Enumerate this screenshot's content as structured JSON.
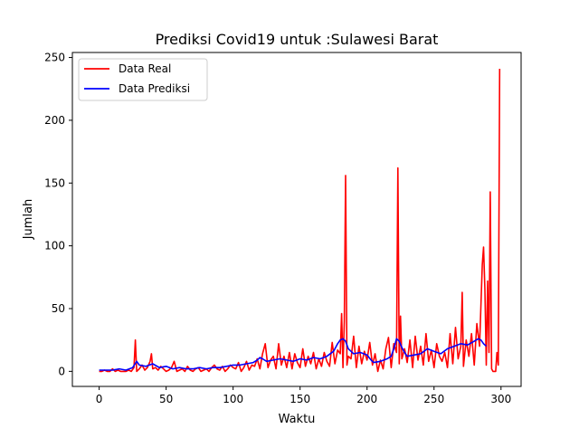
{
  "chart_data": {
    "type": "line",
    "title": "Prediksi Covid19 untuk :Sulawesi Barat",
    "xlabel": "Waktu",
    "ylabel": "Jumlah",
    "xlim": [
      -20,
      315
    ],
    "ylim": [
      -12,
      254
    ],
    "xticks": [
      0,
      50,
      100,
      150,
      200,
      250,
      300
    ],
    "yticks": [
      0,
      50,
      100,
      150,
      200,
      250
    ],
    "grid": false,
    "legend_position": "top-left",
    "series": [
      {
        "name": "Data Real",
        "color": "#ff0000",
        "x": [
          0,
          2,
          4,
          6,
          8,
          10,
          12,
          14,
          16,
          18,
          20,
          22,
          24,
          26,
          27,
          28,
          30,
          32,
          34,
          36,
          38,
          39,
          40,
          42,
          44,
          46,
          48,
          50,
          52,
          54,
          56,
          58,
          60,
          62,
          64,
          66,
          68,
          70,
          72,
          74,
          76,
          78,
          80,
          82,
          84,
          86,
          88,
          90,
          92,
          94,
          96,
          98,
          100,
          102,
          104,
          106,
          108,
          110,
          112,
          114,
          116,
          118,
          120,
          122,
          124,
          126,
          128,
          130,
          132,
          134,
          136,
          138,
          140,
          142,
          144,
          146,
          148,
          150,
          152,
          154,
          156,
          158,
          160,
          162,
          164,
          166,
          168,
          170,
          172,
          174,
          176,
          178,
          180,
          181,
          182,
          183,
          184,
          185,
          186,
          188,
          190,
          192,
          194,
          196,
          198,
          200,
          202,
          204,
          206,
          208,
          210,
          212,
          214,
          216,
          218,
          220,
          222,
          223,
          224,
          225,
          226,
          228,
          230,
          232,
          234,
          236,
          238,
          240,
          242,
          244,
          246,
          248,
          250,
          252,
          254,
          256,
          258,
          260,
          262,
          264,
          266,
          268,
          270,
          271,
          272,
          274,
          276,
          278,
          280,
          282,
          284,
          286,
          287,
          288,
          289,
          290,
          291,
          292,
          293,
          294,
          295,
          296,
          297,
          298,
          299
        ],
        "values": [
          0,
          0,
          1,
          0,
          0,
          2,
          0,
          1,
          0,
          0,
          0,
          1,
          0,
          3,
          25,
          0,
          2,
          5,
          1,
          3,
          8,
          14,
          2,
          3,
          1,
          4,
          2,
          0,
          1,
          3,
          8,
          0,
          1,
          2,
          0,
          4,
          1,
          0,
          2,
          3,
          0,
          1,
          2,
          0,
          3,
          5,
          2,
          1,
          4,
          0,
          2,
          5,
          3,
          2,
          7,
          0,
          3,
          8,
          1,
          5,
          4,
          10,
          2,
          14,
          22,
          3,
          9,
          12,
          2,
          22,
          5,
          12,
          3,
          15,
          2,
          14,
          7,
          3,
          18,
          4,
          12,
          6,
          15,
          2,
          10,
          4,
          15,
          8,
          4,
          23,
          6,
          17,
          14,
          46,
          3,
          40,
          156,
          5,
          12,
          10,
          28,
          3,
          20,
          6,
          16,
          9,
          23,
          5,
          14,
          0,
          9,
          2,
          18,
          27,
          3,
          22,
          15,
          162,
          6,
          44,
          10,
          18,
          7,
          25,
          3,
          28,
          9,
          20,
          5,
          30,
          8,
          17,
          3,
          22,
          12,
          8,
          15,
          3,
          30,
          6,
          35,
          10,
          20,
          63,
          4,
          25,
          12,
          30,
          5,
          38,
          20,
          85,
          99,
          65,
          5,
          72,
          15,
          143,
          2,
          0,
          0,
          0,
          15,
          5,
          241
        ]
      },
      {
        "name": "Data Prediksi",
        "color": "#0000ff",
        "x": [
          0,
          5,
          10,
          15,
          20,
          25,
          28,
          30,
          35,
          40,
          45,
          50,
          55,
          60,
          65,
          70,
          75,
          80,
          85,
          90,
          95,
          100,
          105,
          110,
          115,
          118,
          120,
          122,
          125,
          130,
          135,
          140,
          145,
          150,
          155,
          160,
          165,
          170,
          175,
          178,
          180,
          182,
          184,
          186,
          188,
          190,
          195,
          200,
          203,
          205,
          210,
          215,
          218,
          220,
          222,
          224,
          226,
          228,
          230,
          235,
          240,
          245,
          250,
          255,
          260,
          265,
          270,
          275,
          280,
          283,
          285,
          287,
          289
        ],
        "values": [
          1,
          1,
          1,
          2,
          1,
          3,
          8,
          5,
          4,
          6,
          3,
          4,
          2,
          3,
          2,
          2,
          3,
          2,
          3,
          3,
          4,
          5,
          5,
          6,
          7,
          9,
          11,
          10,
          8,
          9,
          10,
          9,
          8,
          10,
          9,
          11,
          10,
          12,
          16,
          22,
          25,
          26,
          24,
          18,
          16,
          14,
          15,
          13,
          9,
          7,
          8,
          10,
          12,
          18,
          26,
          24,
          19,
          15,
          12,
          13,
          14,
          18,
          16,
          14,
          18,
          20,
          22,
          21,
          24,
          26,
          25,
          22,
          20
        ]
      }
    ]
  }
}
